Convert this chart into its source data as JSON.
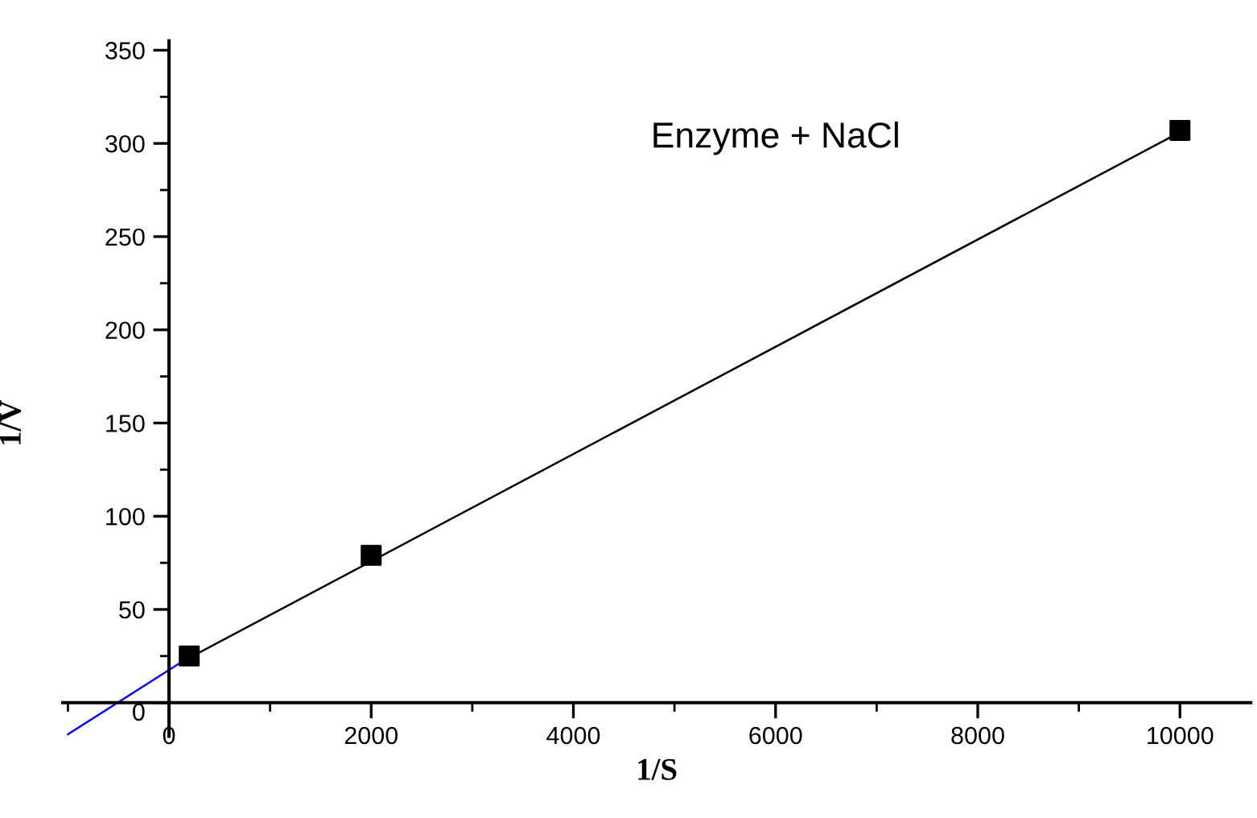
{
  "chart_data": {
    "type": "scatter",
    "xlabel": "1/S",
    "ylabel": "1/V",
    "annotations": [
      "Enzyme + NaCl"
    ],
    "xlim": [
      -1050,
      10700
    ],
    "ylim": [
      -18,
      355
    ],
    "xticks": [
      0,
      2000,
      4000,
      6000,
      8000,
      10000
    ],
    "yticks": [
      0,
      50,
      100,
      150,
      200,
      250,
      300,
      350
    ],
    "grid": false,
    "legend": false,
    "series": [
      {
        "type": "line",
        "color": "#000000",
        "x": [
          200,
          10000
        ],
        "values": [
          24,
          306
        ],
        "marker": "none",
        "line_style": "solid"
      },
      {
        "type": "line",
        "color": "#0000ff",
        "x": [
          -1000,
          100
        ],
        "values": [
          -17,
          21
        ],
        "marker": "none",
        "line_style": "solid"
      },
      {
        "color": "#000000",
        "x": [
          200,
          2000,
          10000
        ],
        "values": [
          25,
          79,
          307
        ],
        "marker": "square"
      }
    ]
  }
}
